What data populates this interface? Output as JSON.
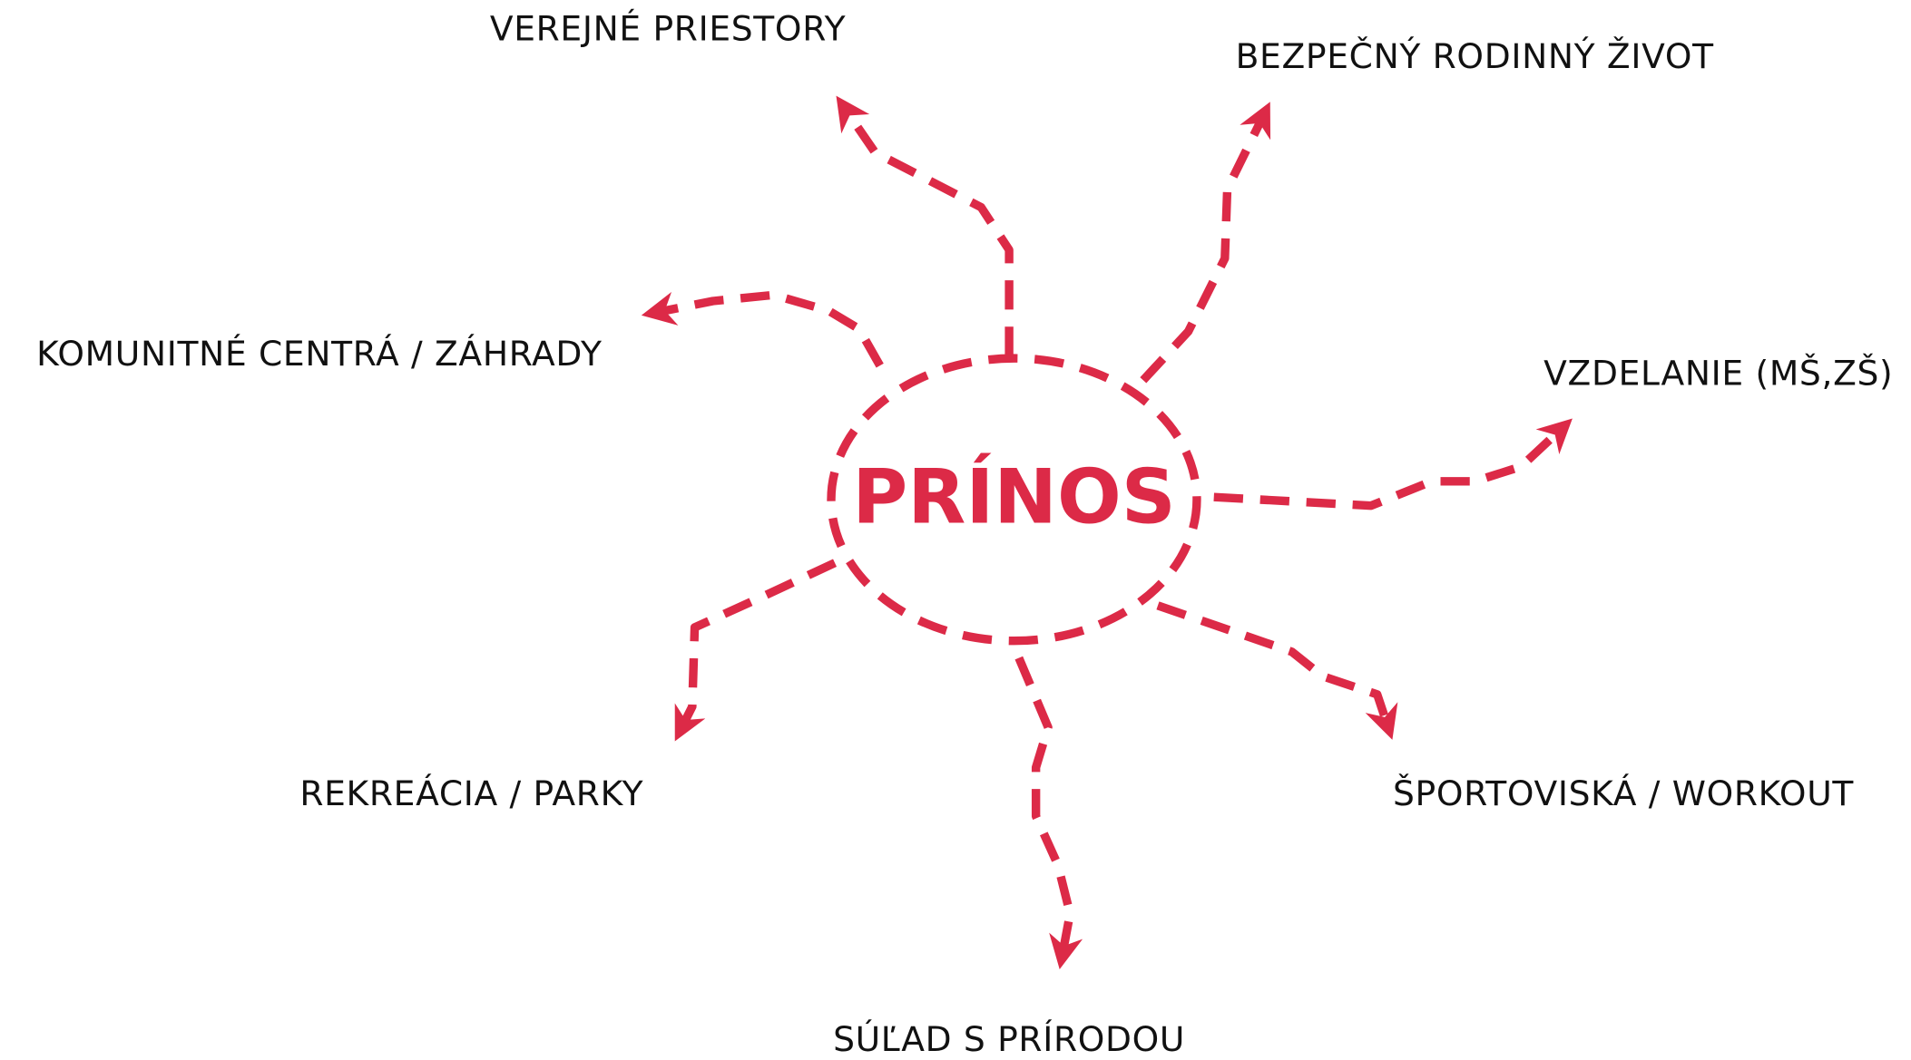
{
  "center": {
    "label": "PRÍNOS"
  },
  "nodes": [
    {
      "label": "VEREJNÉ PRIESTORY"
    },
    {
      "label": "BEZPEČNÝ RODINNÝ ŽIVOT"
    },
    {
      "label": "KOMUNITNÉ CENTRÁ / ZÁHRADY"
    },
    {
      "label": "VZDELANIE (MŠ,ZŠ)"
    },
    {
      "label": "REKREÁCIA / PARKY"
    },
    {
      "label": "ŠPORTOVISKÁ / WORKOUT"
    },
    {
      "label": "SÚĽAD S PRÍRODOU"
    }
  ]
}
